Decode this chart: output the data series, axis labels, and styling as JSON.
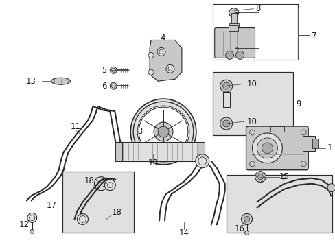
{
  "bg_color": "#ffffff",
  "fig_width": 4.89,
  "fig_height": 3.6,
  "dpi": 100,
  "line_color": "#2a2a2a",
  "text_color": "#1a1a1a",
  "label_fontsize": 8.5,
  "gray_fill": "#c8c8c8",
  "light_gray": "#e0e0e0",
  "mid_gray": "#aaaaaa"
}
